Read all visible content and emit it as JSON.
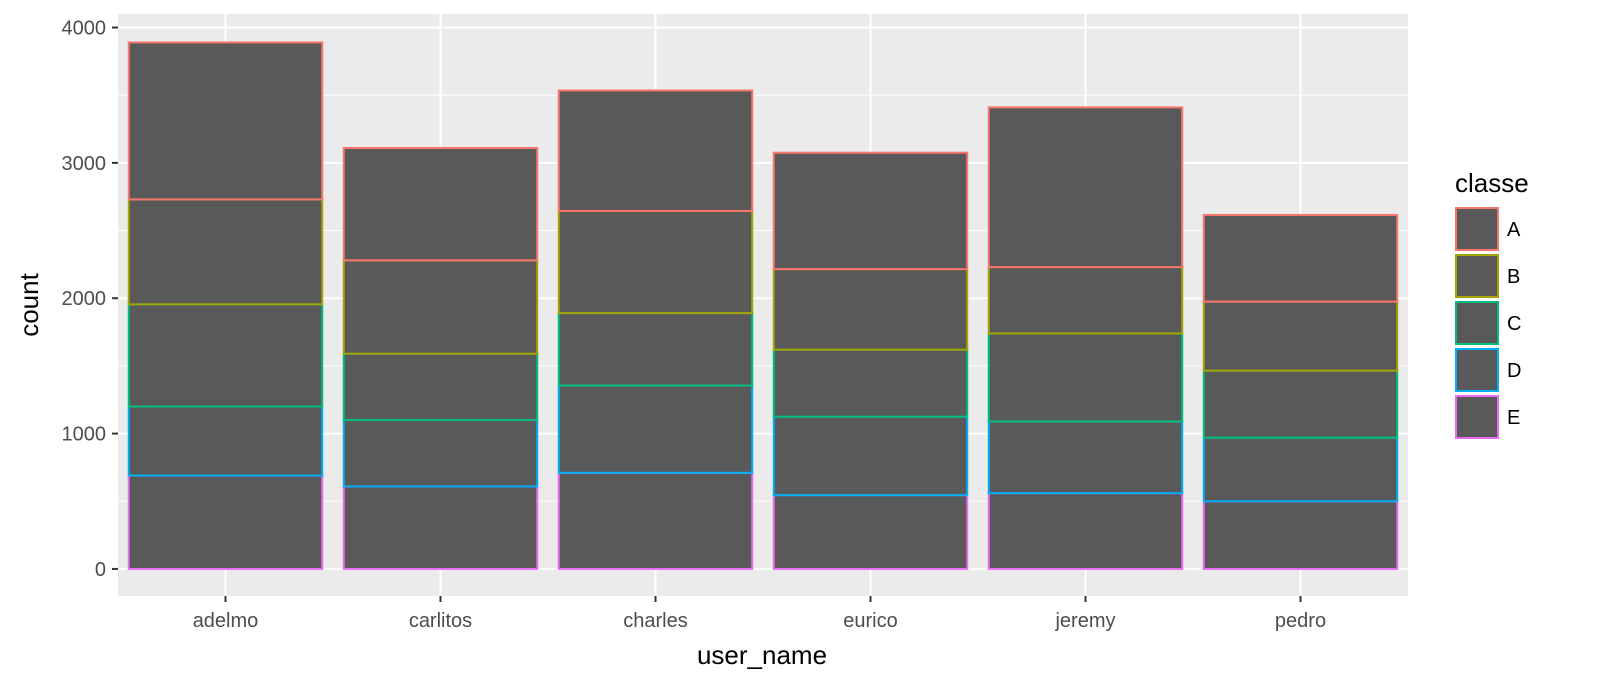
{
  "chart_data": {
    "type": "bar",
    "stacked": true,
    "categories": [
      "adelmo",
      "carlitos",
      "charles",
      "eurico",
      "jeremy",
      "pedro"
    ],
    "series": [
      {
        "name": "E",
        "color": "#E76BF3",
        "values": [
          690,
          610,
          710,
          545,
          560,
          500
        ]
      },
      {
        "name": "D",
        "color": "#00B0F6",
        "values": [
          510,
          490,
          645,
          580,
          530,
          470
        ]
      },
      {
        "name": "C",
        "color": "#00BF7D",
        "values": [
          755,
          490,
          535,
          495,
          650,
          495
        ]
      },
      {
        "name": "B",
        "color": "#A3A500",
        "values": [
          775,
          690,
          755,
          595,
          490,
          510
        ]
      },
      {
        "name": "A",
        "color": "#F8766D",
        "values": [
          1160,
          830,
          890,
          860,
          1180,
          640
        ]
      }
    ],
    "xlabel": "user_name",
    "ylabel": "count",
    "ylim": [
      -200,
      4100
    ],
    "yticks": [
      0,
      1000,
      2000,
      3000,
      4000
    ],
    "grid": true,
    "bar_fill": "#595959",
    "panel_background": "#EBEBEB",
    "legend": {
      "title": "classe",
      "placement": "right",
      "order": [
        "A",
        "B",
        "C",
        "D",
        "E"
      ]
    }
  }
}
